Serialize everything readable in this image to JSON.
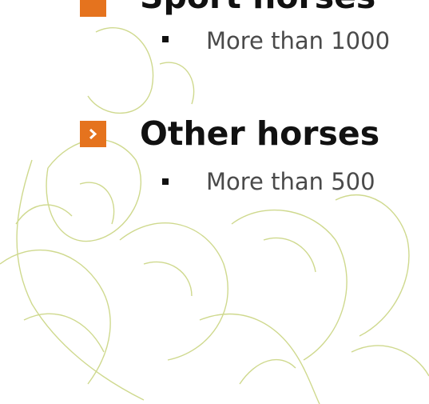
{
  "bullets": [
    {
      "title": "Sport horses",
      "items": [
        "More than 1000"
      ]
    },
    {
      "title": "Other horses",
      "items": [
        "More than 500"
      ]
    }
  ]
}
